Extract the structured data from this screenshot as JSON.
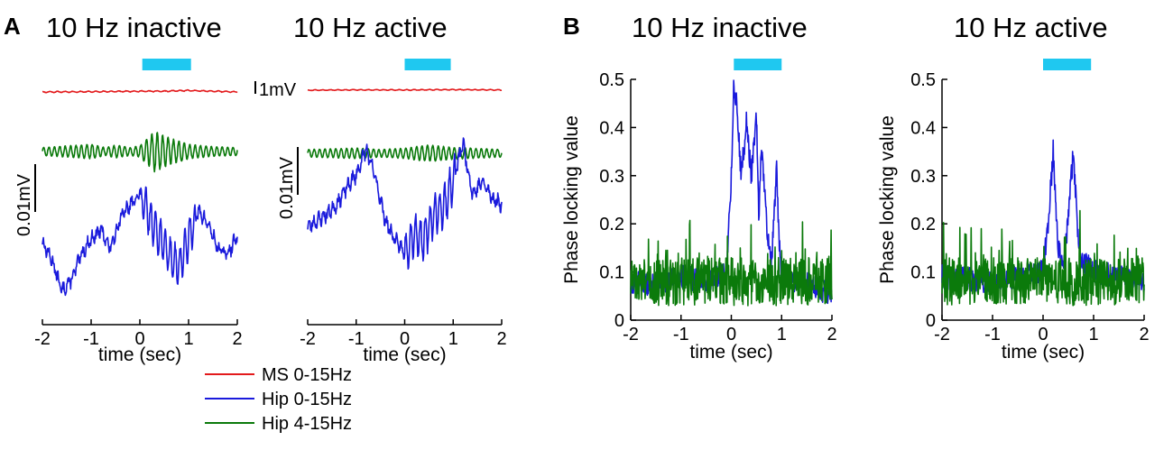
{
  "panels": {
    "A": {
      "letter": "A",
      "legend": [
        {
          "label": "MS 0-15Hz",
          "color": "#e31a1c"
        },
        {
          "label": "Hip 0-15Hz",
          "color": "#1a1adc"
        },
        {
          "label": "Hip 4-15Hz",
          "color": "#0b7a0b"
        }
      ],
      "scale_bars": {
        "mv_label": "1mV",
        "small_label": "0.01mV"
      }
    },
    "B": {
      "letter": "B"
    }
  },
  "colors": {
    "stimulus": "#1fc8f0",
    "ms": "#e31a1c",
    "hip_broad": "#1a1adc",
    "hip_theta": "#0b7a0b"
  },
  "chart_data": [
    {
      "id": "A-inactive",
      "type": "line",
      "title": "10 Hz inactive",
      "xlabel": "time (sec)",
      "ylabel": "",
      "xlim": [
        -2,
        2
      ],
      "xticks": [
        "-2",
        "-1",
        "0",
        "1",
        "2"
      ],
      "stimulus": [
        0.05,
        1.05
      ],
      "series": [
        {
          "name": "MS 0-15Hz",
          "x": [
            -2,
            -1,
            0,
            0.5,
            1,
            1.5,
            2
          ],
          "y": [
            0,
            0.02,
            0.05,
            0.05,
            0.1,
            0.05,
            0
          ]
        },
        {
          "name": "Hip 4-15Hz",
          "x": [
            -2,
            -1,
            -0.5,
            0,
            0.3,
            0.6,
            1,
            1.5,
            2
          ],
          "y": [
            0,
            0.004,
            -0.003,
            0.002,
            0.02,
            0.012,
            0.004,
            0.001,
            0
          ]
        },
        {
          "name": "Hip 0-15Hz",
          "x": [
            -2,
            -1.8,
            -1.6,
            -1.4,
            -1.2,
            -1,
            -0.8,
            -0.6,
            -0.4,
            -0.2,
            0,
            0.2,
            0.4,
            0.6,
            0.8,
            1,
            1.2,
            1.4,
            1.6,
            1.8,
            2
          ],
          "y": [
            -0.004,
            -0.01,
            -0.02,
            -0.016,
            -0.008,
            -0.003,
            0.0,
            -0.006,
            0.004,
            0.008,
            0.012,
            0.004,
            -0.002,
            -0.008,
            -0.012,
            -0.003,
            0.006,
            0.002,
            -0.006,
            -0.008,
            -0.002
          ]
        }
      ]
    },
    {
      "id": "A-active",
      "type": "line",
      "title": "10 Hz active",
      "xlabel": "time (sec)",
      "ylabel": "",
      "xlim": [
        -2,
        2
      ],
      "xticks": [
        "-2",
        "-1",
        "0",
        "1",
        "2"
      ],
      "stimulus": [
        0,
        0.95
      ],
      "series": [
        {
          "name": "MS 0-15Hz",
          "x": [
            -2,
            -1,
            0,
            1,
            2
          ],
          "y": [
            0,
            0.03,
            0.02,
            0.05,
            0.02
          ]
        },
        {
          "name": "Hip 4-15Hz",
          "x": [
            -2,
            -1,
            0,
            0.5,
            1,
            2
          ],
          "y": [
            0,
            -0.002,
            0.002,
            0.006,
            0.003,
            0
          ]
        },
        {
          "name": "Hip 0-15Hz",
          "x": [
            -2,
            -1.8,
            -1.6,
            -1.4,
            -1.2,
            -1,
            -0.8,
            -0.6,
            -0.4,
            -0.2,
            0,
            0.2,
            0.4,
            0.6,
            0.8,
            1,
            1.2,
            1.4,
            1.6,
            1.8,
            2
          ],
          "y": [
            -0.006,
            -0.004,
            -0.002,
            0.001,
            0.006,
            0.01,
            0.018,
            0.009,
            -0.004,
            -0.01,
            -0.014,
            -0.008,
            -0.01,
            -0.002,
            0.0,
            0.008,
            0.02,
            0.004,
            0.008,
            0.003,
            0.001
          ]
        }
      ]
    },
    {
      "id": "B-inactive",
      "type": "line",
      "title": "10 Hz inactive",
      "xlabel": "time (sec)",
      "ylabel": "Phase locking value",
      "xlim": [
        -2,
        2
      ],
      "ylim": [
        0,
        0.5
      ],
      "xticks": [
        "-2",
        "-1",
        "0",
        "1",
        "2"
      ],
      "yticks": [
        "0",
        "0.1",
        "0.2",
        "0.3",
        "0.4",
        "0.5"
      ],
      "stimulus": [
        0.05,
        1.0
      ],
      "series": [
        {
          "name": "Hip 0-15Hz",
          "x": [
            -2,
            -1.5,
            -1,
            -0.5,
            -0.1,
            0,
            0.05,
            0.1,
            0.2,
            0.3,
            0.4,
            0.5,
            0.55,
            0.6,
            0.7,
            0.8,
            0.9,
            0.95,
            1,
            1.2,
            1.5,
            2
          ],
          "y": [
            0.08,
            0.07,
            0.09,
            0.08,
            0.1,
            0.3,
            0.49,
            0.45,
            0.3,
            0.41,
            0.3,
            0.42,
            0.2,
            0.37,
            0.2,
            0.12,
            0.31,
            0.16,
            0.09,
            0.08,
            0.08,
            0.05
          ]
        },
        {
          "name": "Hip 4-15Hz",
          "x": [
            -2,
            -1,
            0,
            1,
            2
          ],
          "y": [
            0.08,
            0.08,
            0.08,
            0.08,
            0.08
          ]
        }
      ]
    },
    {
      "id": "B-active",
      "type": "line",
      "title": "10 Hz active",
      "xlabel": "time (sec)",
      "ylabel": "Phase locking value",
      "xlim": [
        -2,
        2
      ],
      "ylim": [
        0,
        0.5
      ],
      "xticks": [
        "-2",
        "-1",
        "0",
        "1",
        "2"
      ],
      "yticks": [
        "0",
        "0.1",
        "0.2",
        "0.3",
        "0.4",
        "0.5"
      ],
      "stimulus": [
        0.0,
        0.95
      ],
      "series": [
        {
          "name": "Hip 0-15Hz",
          "x": [
            -2,
            -1,
            -0.5,
            0,
            0.1,
            0.2,
            0.3,
            0.4,
            0.5,
            0.6,
            0.7,
            0.8,
            1,
            1.5,
            2
          ],
          "y": [
            0.09,
            0.08,
            0.09,
            0.1,
            0.2,
            0.35,
            0.15,
            0.1,
            0.22,
            0.35,
            0.16,
            0.12,
            0.1,
            0.09,
            0.08
          ]
        },
        {
          "name": "Hip 4-15Hz",
          "x": [
            -2,
            -1,
            0,
            1,
            2
          ],
          "y": [
            0.08,
            0.08,
            0.08,
            0.08,
            0.08
          ]
        }
      ]
    }
  ]
}
